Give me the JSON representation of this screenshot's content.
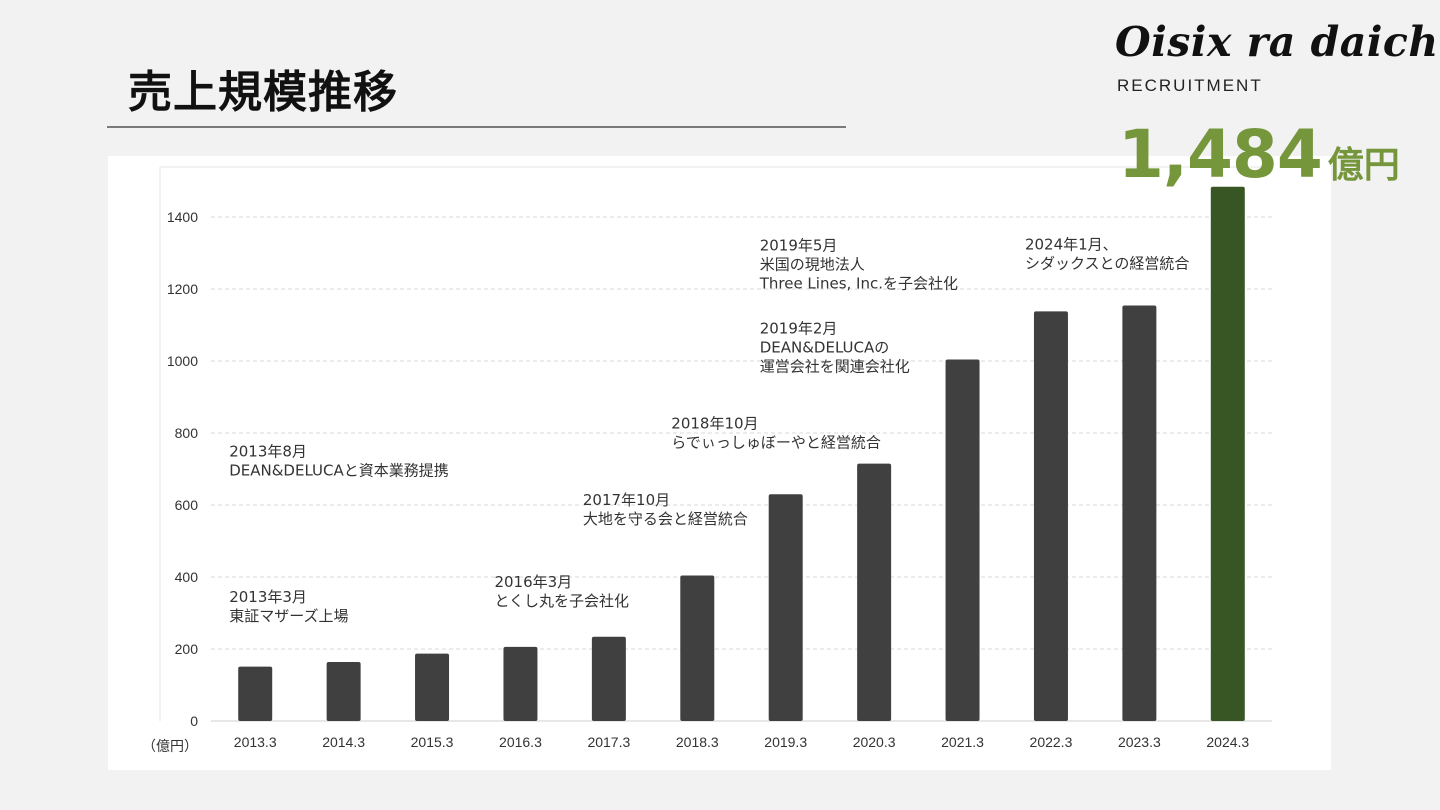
{
  "header": {
    "title": "売上規模推移",
    "brand": "Oisix ra daichi",
    "brand_sub": "RECRUITMENT"
  },
  "headline": {
    "value": "1,484",
    "unit": "億円",
    "color": "#75963b"
  },
  "chart_data": {
    "type": "bar",
    "categories": [
      "2013.3",
      "2014.3",
      "2015.3",
      "2016.3",
      "2017.3",
      "2018.3",
      "2019.3",
      "2020.3",
      "2021.3",
      "2022.3",
      "2023.3",
      "2024.3"
    ],
    "values": [
      151,
      164,
      187,
      206,
      234,
      404,
      630,
      715,
      1004,
      1138,
      1154,
      1484
    ],
    "ylim": [
      0,
      1500
    ],
    "yticks": [
      0,
      200,
      400,
      600,
      800,
      1000,
      1200,
      1400
    ],
    "ylabel": "（億円）",
    "grid": true,
    "bar_color": "#404040",
    "highlight_color": "#375623",
    "highlight_index": 11,
    "annotations": [
      {
        "lines": [
          "2013年3月",
          "東証マザーズ上場"
        ],
        "category": "2013.3",
        "y": 330
      },
      {
        "lines": [
          "2013年8月",
          "DEAN&DELUCAと資本業務提携"
        ],
        "category": "2013.3",
        "y": 735
      },
      {
        "lines": [
          "2016年3月",
          "とくし丸を子会社化"
        ],
        "category": "2016.3",
        "y": 372
      },
      {
        "lines": [
          "2017年10月",
          "大地を守る会と経営統合"
        ],
        "category": "2017.3",
        "y": 600
      },
      {
        "lines": [
          "2018年10月",
          "らでぃっしゅぼーやと経営統合"
        ],
        "category": "2018.3",
        "y": 812
      },
      {
        "lines": [
          "2019年2月",
          "DEAN&DELUCAの",
          "運営会社を関連会社化"
        ],
        "category": "2019.3",
        "y": 1077
      },
      {
        "lines": [
          "2019年5月",
          "米国の現地法人",
          "Three Lines, Inc.を子会社化"
        ],
        "category": "2019.3",
        "y": 1307
      },
      {
        "lines": [
          "2024年1月、",
          "シダックスとの経営統合"
        ],
        "category": "2022.3",
        "y": 1310
      }
    ]
  }
}
